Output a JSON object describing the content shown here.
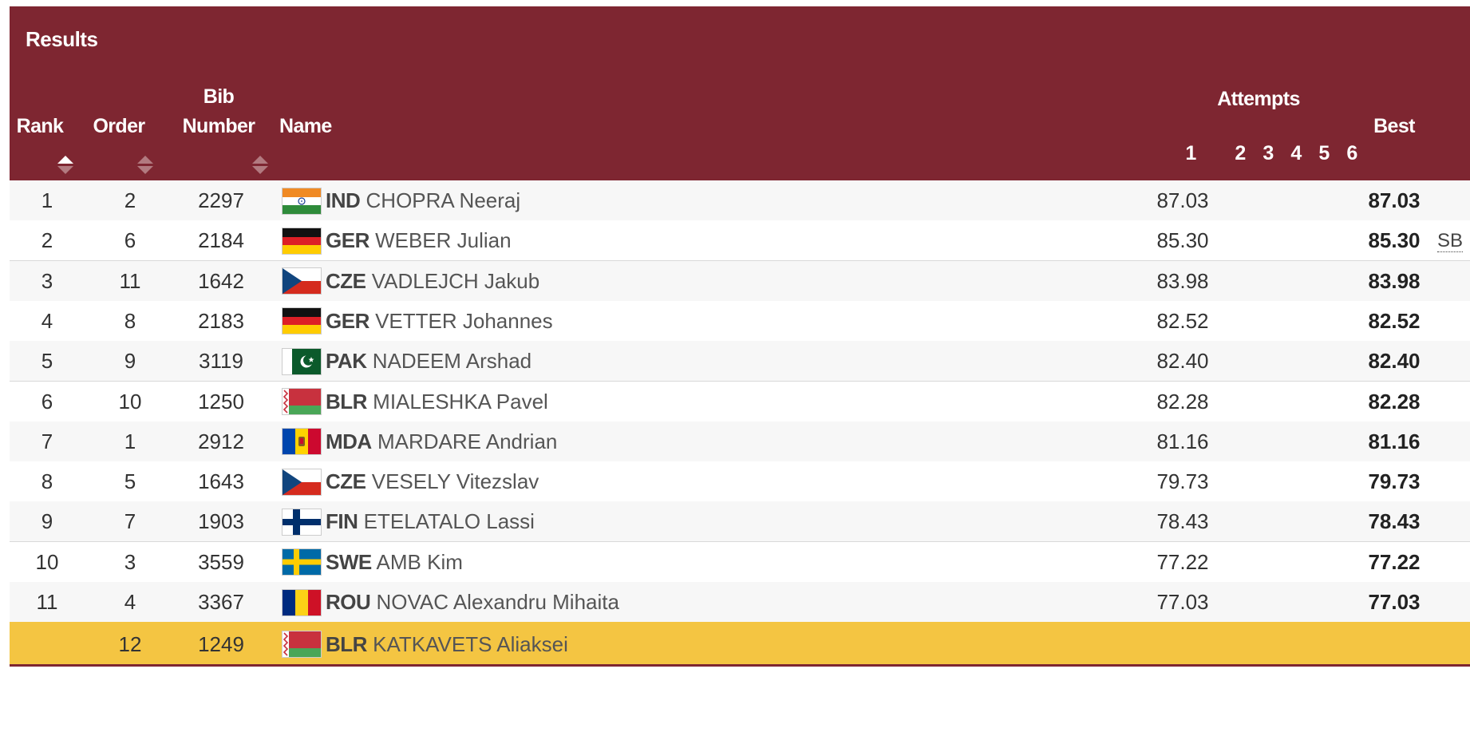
{
  "title": "Results",
  "headers": {
    "rank": "Rank",
    "order": "Order",
    "bib_line1": "Bib",
    "bib_line2": "Number",
    "name": "Name",
    "attempts": "Attempts",
    "attempt_numbers": [
      "1",
      "2",
      "3",
      "4",
      "5",
      "6"
    ],
    "best": "Best"
  },
  "colors": {
    "header_bg": "#7e2631",
    "highlight_row": "#f4c542"
  },
  "rows": [
    {
      "rank": "1",
      "order": "2",
      "bib": "2297",
      "noc": "IND",
      "name": "CHOPRA Neeraj",
      "flag": "india-flag",
      "a1": "87.03",
      "best": "87.03",
      "note": ""
    },
    {
      "rank": "2",
      "order": "6",
      "bib": "2184",
      "noc": "GER",
      "name": "WEBER Julian",
      "flag": "germany-flag",
      "a1": "85.30",
      "best": "85.30",
      "note": "SB"
    },
    {
      "rank": "3",
      "order": "11",
      "bib": "1642",
      "noc": "CZE",
      "name": "VADLEJCH Jakub",
      "flag": "czech-flag",
      "a1": "83.98",
      "best": "83.98",
      "note": ""
    },
    {
      "rank": "4",
      "order": "8",
      "bib": "2183",
      "noc": "GER",
      "name": "VETTER Johannes",
      "flag": "germany-flag",
      "a1": "82.52",
      "best": "82.52",
      "note": ""
    },
    {
      "rank": "5",
      "order": "9",
      "bib": "3119",
      "noc": "PAK",
      "name": "NADEEM Arshad",
      "flag": "pakistan-flag",
      "a1": "82.40",
      "best": "82.40",
      "note": ""
    },
    {
      "rank": "6",
      "order": "10",
      "bib": "1250",
      "noc": "BLR",
      "name": "MIALESHKA Pavel",
      "flag": "belarus-flag",
      "a1": "82.28",
      "best": "82.28",
      "note": ""
    },
    {
      "rank": "7",
      "order": "1",
      "bib": "2912",
      "noc": "MDA",
      "name": "MARDARE Andrian",
      "flag": "moldova-flag",
      "a1": "81.16",
      "best": "81.16",
      "note": ""
    },
    {
      "rank": "8",
      "order": "5",
      "bib": "1643",
      "noc": "CZE",
      "name": "VESELY Vitezslav",
      "flag": "czech-flag",
      "a1": "79.73",
      "best": "79.73",
      "note": ""
    },
    {
      "rank": "9",
      "order": "7",
      "bib": "1903",
      "noc": "FIN",
      "name": "ETELATALO Lassi",
      "flag": "finland-flag",
      "a1": "78.43",
      "best": "78.43",
      "note": ""
    },
    {
      "rank": "10",
      "order": "3",
      "bib": "3559",
      "noc": "SWE",
      "name": "AMB Kim",
      "flag": "sweden-flag",
      "a1": "77.22",
      "best": "77.22",
      "note": ""
    },
    {
      "rank": "11",
      "order": "4",
      "bib": "3367",
      "noc": "ROU",
      "name": "NOVAC Alexandru Mihaita",
      "flag": "romania-flag",
      "a1": "77.03",
      "best": "77.03",
      "note": ""
    },
    {
      "rank": "",
      "order": "12",
      "bib": "1249",
      "noc": "BLR",
      "name": "KATKAVETS Aliaksei",
      "flag": "belarus-flag",
      "a1": "",
      "best": "",
      "note": ""
    }
  ]
}
